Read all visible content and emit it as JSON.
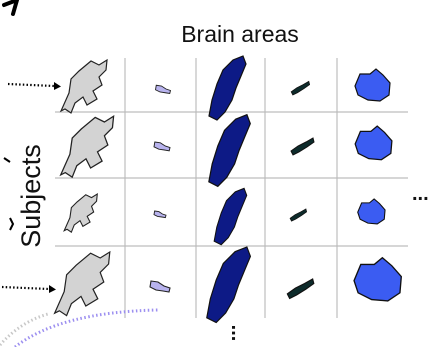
{
  "title": "Brain areas",
  "side_label": "Subjects",
  "continuation_right": "...",
  "continuation_bottom": "...",
  "grid": {
    "rows": 4,
    "cols": 5
  },
  "colors": {
    "area_1": "#d3d3d3",
    "area_2": "#b8b3ee",
    "area_3": "#0d1a86",
    "area_4": "#0d2b2b",
    "area_5": "#3b5cf2",
    "grid_line": "#bdbdbd",
    "arrow_dots": "#000000",
    "faded_dots_gray": "#c8c8c8",
    "faded_dots_purple": "#9c8ff0"
  }
}
